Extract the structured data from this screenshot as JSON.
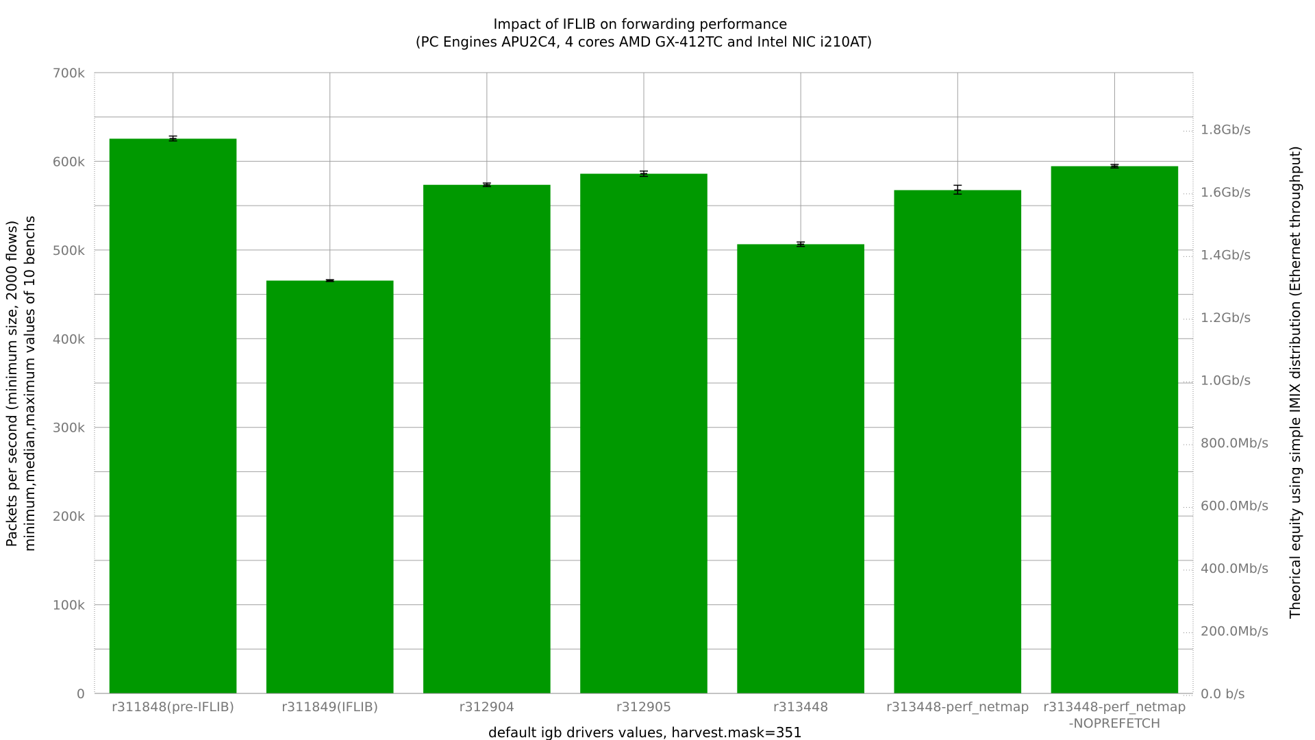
{
  "chart_data": {
    "type": "bar",
    "title": "Impact of IFLIB on forwarding performance",
    "subtitle": "(PC Engines APU2C4, 4 cores AMD GX-412TC and Intel NIC i210AT)",
    "xlabel": "default igb drivers values, harvest.mask=351",
    "ylabel_line1": "Packets per second (minimum size, 2000 flows)",
    "ylabel_line2": "minimum,median,maximum values of 10 benchs",
    "y2label": "Theorical equity using simple IMIX distribution (Ethernet throughput)",
    "categories": [
      [
        "r311848(pre-IFLIB)"
      ],
      [
        "r311849(IFLIB)"
      ],
      [
        "r312904"
      ],
      [
        "r312905"
      ],
      [
        "r313448"
      ],
      [
        "r313448-perf_netmap"
      ],
      [
        "r313448-perf_netmap",
        "-NOPREFETCH"
      ]
    ],
    "series": [
      {
        "median": [
          625500,
          465500,
          573500,
          586000,
          506500,
          567500,
          594500
        ],
        "min": [
          623000,
          464500,
          571500,
          583000,
          504000,
          563000,
          592500
        ],
        "max": [
          628500,
          466500,
          575500,
          589000,
          509000,
          573000,
          596500
        ],
        "color": "#009900"
      }
    ],
    "ylim": [
      0,
      700000
    ],
    "y_ticks": [
      {
        "v": 0,
        "label": "0"
      },
      {
        "v": 100000,
        "label": "100k"
      },
      {
        "v": 200000,
        "label": "200k"
      },
      {
        "v": 300000,
        "label": "300k"
      },
      {
        "v": 400000,
        "label": "400k"
      },
      {
        "v": 500000,
        "label": "500k"
      },
      {
        "v": 600000,
        "label": "600k"
      },
      {
        "v": 700000,
        "label": "700k"
      }
    ],
    "y2_max_bps": 1980000000,
    "y2_ticks": [
      {
        "v": 0,
        "label": "0.0 b/s"
      },
      {
        "v": 200000000,
        "label": "200.0Mb/s"
      },
      {
        "v": 400000000,
        "label": "400.0Mb/s"
      },
      {
        "v": 600000000,
        "label": "600.0Mb/s"
      },
      {
        "v": 800000000,
        "label": "800.0Mb/s"
      },
      {
        "v": 1000000000,
        "label": "1.0Gb/s"
      },
      {
        "v": 1200000000,
        "label": "1.2Gb/s"
      },
      {
        "v": 1400000000,
        "label": "1.4Gb/s"
      },
      {
        "v": 1600000000,
        "label": "1.6Gb/s"
      },
      {
        "v": 1800000000,
        "label": "1.8Gb/s"
      }
    ],
    "grid": true,
    "legend": "none",
    "grid_color": "#a0a0a0",
    "text_color": "#777777"
  }
}
